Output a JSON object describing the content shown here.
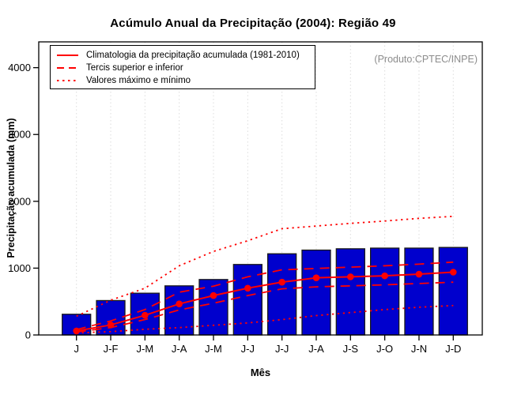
{
  "title": "Acúmulo Anual da Precipitação (2004): Região 49",
  "watermark": "(Produto:CPTEC/INPE)",
  "legend": {
    "items": [
      {
        "label": "Climatologia da precipitação acumulada (1981-2010)",
        "style": "solid"
      },
      {
        "label": "Tercis superior e inferior",
        "style": "dashed"
      },
      {
        "label": "Valores máximo e mínimo",
        "style": "dotted"
      }
    ]
  },
  "chart_data": {
    "type": "bar",
    "title": "Acúmulo Anual da Precipitação (2004): Região 49",
    "xlabel": "Mês",
    "ylabel": "Precipitação acumulada (mm)",
    "ylim": [
      0,
      4386
    ],
    "yticks": [
      0,
      1000,
      2000,
      3000,
      4000
    ],
    "grid": "vertical-dotted-light",
    "legend_position": "top-left",
    "categories": [
      "J",
      "J-F",
      "J-M",
      "J-A",
      "J-M",
      "J-J",
      "J-J",
      "J-A",
      "J-S",
      "J-O",
      "J-N",
      "J-D"
    ],
    "bars": {
      "name": "Precipitação acumulada 2004",
      "color": "#0000CD",
      "values": [
        310,
        515,
        625,
        735,
        830,
        1055,
        1215,
        1270,
        1290,
        1300,
        1300,
        1310
      ]
    },
    "line_color": "#FF0000",
    "series": [
      {
        "name": "Valor máximo",
        "style": "dotted",
        "points": false,
        "values": [
          280,
          520,
          700,
          1035,
          1250,
          1410,
          1590,
          1630,
          1670,
          1705,
          1745,
          1775
        ]
      },
      {
        "name": "Valor mínimo",
        "style": "dotted",
        "points": false,
        "values": [
          30,
          50,
          85,
          110,
          145,
          180,
          230,
          290,
          335,
          380,
          415,
          440
        ]
      },
      {
        "name": "Tercil superior",
        "style": "dashed",
        "points": false,
        "values": [
          80,
          210,
          380,
          640,
          730,
          870,
          975,
          995,
          1015,
          1035,
          1060,
          1090
        ]
      },
      {
        "name": "Tercil inferior",
        "style": "dashed",
        "points": false,
        "values": [
          45,
          110,
          230,
          375,
          475,
          590,
          690,
          720,
          735,
          750,
          770,
          790
        ]
      },
      {
        "name": "Climatologia da precipitação acumulada (1981-2010)",
        "style": "solid",
        "points": true,
        "values": [
          60,
          150,
          295,
          465,
          590,
          700,
          790,
          855,
          870,
          885,
          910,
          940
        ]
      }
    ]
  }
}
